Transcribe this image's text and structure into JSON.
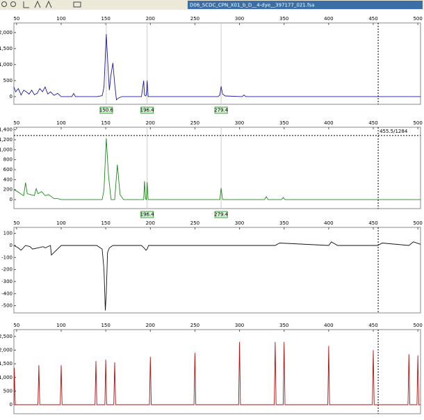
{
  "toolbar": {
    "filename": "D06_SCDC_CPN_X01_b_D__4-dye__397177_021.fsa"
  },
  "chart_data": [
    {
      "type": "line",
      "color": "#1a1aa0",
      "xlim": [
        47,
        503
      ],
      "ylim": [
        -240,
        2300
      ],
      "xticks": [
        50,
        100,
        150,
        200,
        250,
        300,
        350,
        400,
        450,
        500
      ],
      "yticks": [
        0,
        500,
        {
          "value": 1000,
          "label": "1,000"
        },
        {
          "value": 1500,
          "label": "1,500"
        },
        {
          "value": 2000,
          "label": "2,000"
        }
      ],
      "x": [
        47,
        49,
        52,
        55,
        58,
        61,
        64,
        67,
        70,
        73,
        76,
        79,
        82,
        85,
        88,
        92,
        96,
        100,
        112,
        114,
        116,
        140,
        146,
        148,
        150.6,
        152,
        154,
        156,
        158,
        160,
        162,
        164,
        168,
        175,
        190,
        192.5,
        193.5,
        194.5,
        195.5,
        196.4,
        197.5,
        220,
        276,
        278,
        279.4,
        281,
        284,
        303,
        305,
        307,
        400,
        503
      ],
      "values": [
        300,
        150,
        250,
        50,
        200,
        150,
        80,
        200,
        60,
        100,
        250,
        150,
        300,
        80,
        150,
        40,
        100,
        0,
        0,
        100,
        0,
        0,
        30,
        300,
        1950,
        1200,
        200,
        700,
        1050,
        400,
        -100,
        -50,
        0,
        0,
        0,
        500,
        50,
        20,
        50,
        500,
        0,
        0,
        0,
        50,
        320,
        80,
        20,
        0,
        50,
        0,
        0,
        0
      ],
      "markers": [
        150.6,
        196.4,
        279.4
      ],
      "cursor_x": 455.5
    },
    {
      "type": "line",
      "color": "#1a8a1a",
      "xlim": [
        47,
        503
      ],
      "ylim": [
        -180,
        1450
      ],
      "xticks": [
        50,
        100,
        150,
        200,
        250,
        300,
        350,
        400,
        450,
        500
      ],
      "yticks": [
        0,
        200,
        400,
        600,
        800,
        {
          "value": 1000,
          "label": "1,000"
        },
        {
          "value": 1200,
          "label": "1,200"
        },
        {
          "value": 1400,
          "label": "1,400"
        }
      ],
      "x": [
        47,
        52,
        56,
        58,
        60,
        62,
        66,
        70,
        72,
        74,
        78,
        82,
        86,
        92,
        96,
        100,
        146,
        148,
        150.6,
        153,
        156,
        160,
        163,
        166,
        170,
        190,
        192.5,
        193.5,
        194.5,
        195.5,
        196.4,
        197.5,
        270,
        278,
        279.4,
        281,
        328,
        330,
        332,
        347,
        349,
        351,
        420,
        503
      ],
      "values": [
        200,
        150,
        100,
        80,
        340,
        120,
        100,
        80,
        220,
        120,
        160,
        80,
        100,
        20,
        20,
        0,
        0,
        200,
        1230,
        500,
        0,
        0,
        700,
        100,
        0,
        0,
        0,
        370,
        20,
        0,
        350,
        0,
        0,
        0,
        230,
        0,
        0,
        60,
        0,
        0,
        40,
        0,
        0,
        0
      ],
      "markers": [
        196.4,
        279.4
      ],
      "cursor_x": 455.5,
      "cursor_y": 1284,
      "cursor_label": "455.5/1284"
    },
    {
      "type": "line",
      "color": "#111111",
      "xlim": [
        47,
        503
      ],
      "ylim": [
        -560,
        150
      ],
      "xticks": [
        50,
        100,
        150,
        200,
        250,
        300,
        350,
        400,
        450,
        500
      ],
      "yticks": [
        100,
        0,
        -100,
        -200,
        -300,
        -400,
        -500
      ],
      "x": [
        47,
        52,
        55,
        60,
        65,
        68,
        80,
        82,
        88,
        89,
        100,
        140,
        146,
        148,
        149.5,
        150.6,
        152,
        154,
        158,
        190,
        193,
        195,
        196.4,
        198,
        250,
        340,
        345,
        400,
        403,
        410,
        455,
        460,
        490,
        495,
        503
      ],
      "values": [
        0,
        -20,
        -40,
        0,
        -10,
        -30,
        -10,
        -20,
        0,
        -80,
        0,
        0,
        -30,
        -200,
        -540,
        -400,
        -60,
        -20,
        0,
        0,
        -20,
        -40,
        -30,
        0,
        0,
        0,
        20,
        0,
        30,
        0,
        0,
        20,
        0,
        30,
        10
      ],
      "cursor_x": 455.5
    },
    {
      "type": "line",
      "color": "#b01010",
      "xlim": [
        47,
        503
      ],
      "ylim": [
        -330,
        2750
      ],
      "xticks": [
        50,
        100,
        150,
        200,
        250,
        300,
        350,
        400,
        450,
        500
      ],
      "yticks": [
        0,
        500,
        {
          "value": 1000,
          "label": "1,000"
        },
        {
          "value": 1500,
          "label": "1,500"
        },
        {
          "value": 2000,
          "label": "2,000"
        },
        {
          "value": 2500,
          "label": "2,500"
        }
      ],
      "x": [
        47,
        47.5,
        48.5,
        74,
        75,
        76,
        99,
        100,
        101,
        138,
        139,
        140,
        149,
        150,
        151,
        159,
        160,
        161,
        199,
        200,
        201,
        249,
        250,
        251,
        299,
        300,
        301,
        339,
        340,
        341,
        349,
        350,
        351,
        399,
        400,
        401,
        449,
        450,
        451,
        489,
        490,
        491,
        499,
        500,
        501,
        503
      ],
      "values": [
        0,
        1350,
        0,
        0,
        1450,
        0,
        0,
        1450,
        0,
        0,
        1600,
        0,
        0,
        1650,
        0,
        0,
        1550,
        0,
        0,
        1750,
        0,
        0,
        1900,
        0,
        0,
        2300,
        0,
        0,
        2300,
        0,
        0,
        2300,
        0,
        0,
        2150,
        0,
        0,
        2000,
        0,
        0,
        1850,
        0,
        0,
        1800,
        0,
        0
      ],
      "cursor_x": 455.5
    }
  ]
}
